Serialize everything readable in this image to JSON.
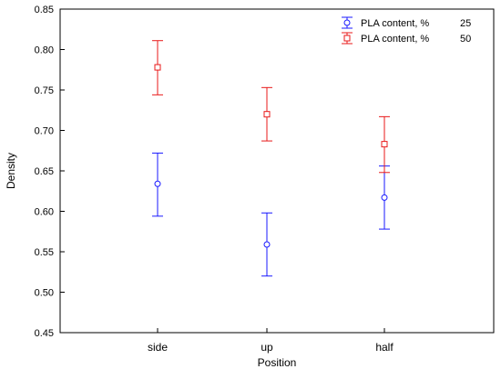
{
  "chart_data": {
    "type": "scatter",
    "title": "",
    "xlabel": "Position",
    "ylabel": "Density",
    "categories": [
      "side",
      "up",
      "half"
    ],
    "ylim": [
      0.45,
      0.85
    ],
    "yticks": [
      "0.45",
      "0.50",
      "0.55",
      "0.60",
      "0.65",
      "0.70",
      "0.75",
      "0.80",
      "0.85"
    ],
    "grid": false,
    "legend_position": "top-right",
    "series": [
      {
        "name": "PLA content, %",
        "level": "25",
        "color": "#1a1aff",
        "marker": "circle",
        "values": [
          0.634,
          0.559,
          0.617
        ],
        "lower": [
          0.594,
          0.52,
          0.578
        ],
        "upper": [
          0.672,
          0.598,
          0.656
        ]
      },
      {
        "name": "PLA content, %",
        "level": "50",
        "color": "#e8191a",
        "marker": "square",
        "values": [
          0.778,
          0.72,
          0.683
        ],
        "lower": [
          0.744,
          0.687,
          0.648
        ],
        "upper": [
          0.811,
          0.753,
          0.717
        ]
      }
    ]
  }
}
